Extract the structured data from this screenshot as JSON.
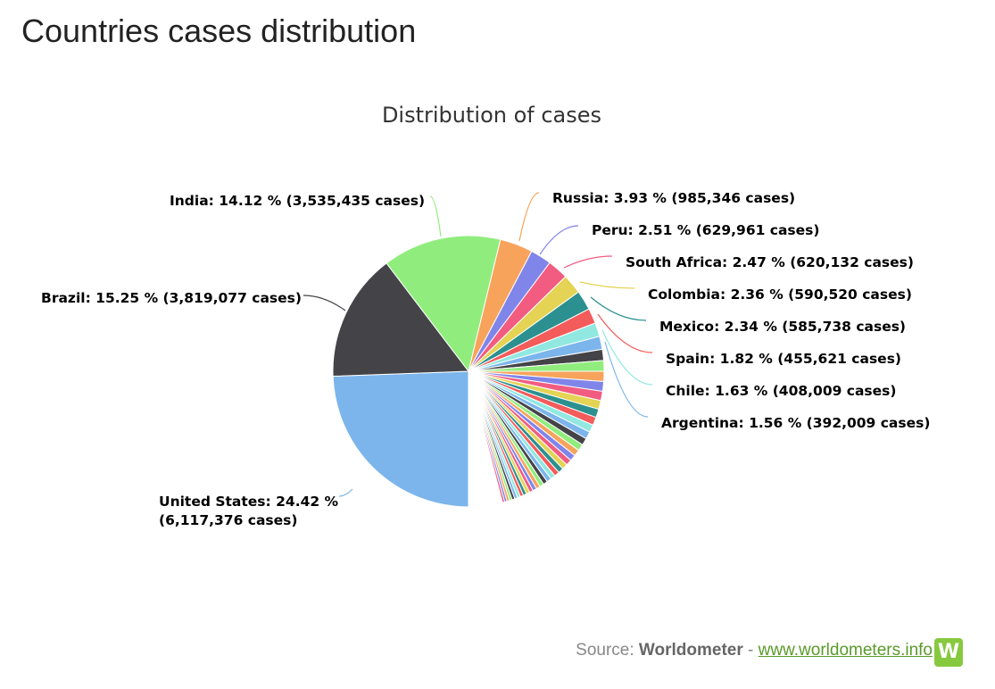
{
  "page_title": "Countries cases distribution",
  "source": {
    "prefix": "Source: ",
    "brand": "Worldometer",
    "separator": " - ",
    "link": "www.worldometers.info",
    "logo_letter": "W"
  },
  "chart_data": {
    "type": "pie",
    "title": "Distribution of cases",
    "slices": [
      {
        "name": "United States",
        "percent": 24.42,
        "cases": 6117376,
        "color": "#7cb5ec",
        "label": "United States: 24.42 %",
        "label2": "(6,117,376 cases)"
      },
      {
        "name": "Brazil",
        "percent": 15.25,
        "cases": 3819077,
        "color": "#434348",
        "label": "Brazil: 15.25 % (3,819,077 cases)"
      },
      {
        "name": "India",
        "percent": 14.12,
        "cases": 3535435,
        "color": "#90ed7d",
        "label": "India: 14.12 % (3,535,435 cases)"
      },
      {
        "name": "Russia",
        "percent": 3.93,
        "cases": 985346,
        "color": "#f7a35c",
        "label": "Russia: 3.93 % (985,346 cases)"
      },
      {
        "name": "Peru",
        "percent": 2.51,
        "cases": 629961,
        "color": "#8085e9",
        "label": "Peru: 2.51 % (629,961 cases)"
      },
      {
        "name": "South Africa",
        "percent": 2.47,
        "cases": 620132,
        "color": "#f15c80",
        "label": "South Africa: 2.47 % (620,132 cases)"
      },
      {
        "name": "Colombia",
        "percent": 2.36,
        "cases": 590520,
        "color": "#e4d354",
        "label": "Colombia: 2.36 % (590,520 cases)"
      },
      {
        "name": "Mexico",
        "percent": 2.34,
        "cases": 585738,
        "color": "#2b908f",
        "label": "Mexico: 2.34 % (585,738 cases)"
      },
      {
        "name": "Spain",
        "percent": 1.82,
        "cases": 455621,
        "color": "#f45b5b",
        "label": "Spain: 1.82 % (455,621 cases)"
      },
      {
        "name": "Chile",
        "percent": 1.63,
        "cases": 408009,
        "color": "#91e8e1",
        "label": "Chile: 1.63 % (408,009 cases)"
      },
      {
        "name": "Argentina",
        "percent": 1.56,
        "cases": 392009,
        "color": "#7cb5ec",
        "label": "Argentina: 1.56 % (392,009 cases)"
      }
    ],
    "other_slice_colors": [
      "#434348",
      "#90ed7d",
      "#f7a35c",
      "#8085e9",
      "#f15c80",
      "#e4d354",
      "#2b908f",
      "#f45b5b",
      "#91e8e1",
      "#7cb5ec"
    ],
    "legend": "none"
  }
}
